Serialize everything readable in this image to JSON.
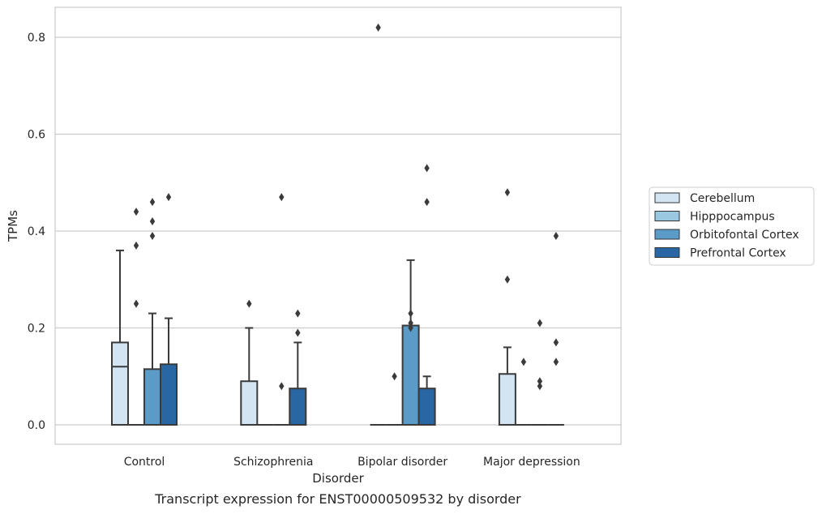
{
  "caption": "Transcript expression for ENST00000509532 by disorder",
  "chart_data": {
    "type": "box",
    "xlabel": "Disorder",
    "ylabel": "TPMs",
    "ylim": [
      -0.04,
      0.86
    ],
    "yticks": [
      0.0,
      0.2,
      0.4,
      0.6,
      0.8
    ],
    "ytick_labels": [
      "0.0",
      "0.2",
      "0.4",
      "0.6",
      "0.8"
    ],
    "grid": "horizontal",
    "legend_placement": "right",
    "categories": [
      "Control",
      "Schizophrenia",
      "Bipolar disorder",
      "Major depression"
    ],
    "series": [
      {
        "name": "Cerebellum",
        "color": "#d3e4f3",
        "boxes": [
          {
            "q1": 0.0,
            "median": 0.12,
            "q3": 0.17,
            "whisker_low": 0.0,
            "whisker_high": 0.36,
            "outliers": []
          },
          {
            "q1": 0.0,
            "median": 0.0,
            "q3": 0.09,
            "whisker_low": 0.0,
            "whisker_high": 0.2,
            "outliers": [
              0.25
            ]
          },
          {
            "q1": 0.0,
            "median": 0.0,
            "q3": 0.0,
            "whisker_low": 0.0,
            "whisker_high": 0.0,
            "outliers": [
              0.82
            ]
          },
          {
            "q1": 0.0,
            "median": 0.0,
            "q3": 0.105,
            "whisker_low": 0.0,
            "whisker_high": 0.16,
            "outliers": [
              0.3,
              0.48
            ]
          }
        ]
      },
      {
        "name": "Hipppocampus",
        "color": "#9ac8e0",
        "boxes": [
          {
            "q1": 0.0,
            "median": 0.0,
            "q3": 0.0,
            "whisker_low": 0.0,
            "whisker_high": 0.0,
            "outliers": [
              0.25,
              0.37,
              0.44
            ]
          },
          {
            "q1": 0.0,
            "median": 0.0,
            "q3": 0.0,
            "whisker_low": 0.0,
            "whisker_high": 0.0,
            "outliers": []
          },
          {
            "q1": 0.0,
            "median": 0.0,
            "q3": 0.0,
            "whisker_low": 0.0,
            "whisker_high": 0.0,
            "outliers": [
              0.1
            ]
          },
          {
            "q1": 0.0,
            "median": 0.0,
            "q3": 0.0,
            "whisker_low": 0.0,
            "whisker_high": 0.0,
            "outliers": [
              0.13
            ]
          }
        ]
      },
      {
        "name": "Orbitofontal Cortex",
        "color": "#5a9bc8",
        "boxes": [
          {
            "q1": 0.0,
            "median": 0.0,
            "q3": 0.115,
            "whisker_low": 0.0,
            "whisker_high": 0.23,
            "outliers": [
              0.39,
              0.42,
              0.46
            ]
          },
          {
            "q1": 0.0,
            "median": 0.0,
            "q3": 0.0,
            "whisker_low": 0.0,
            "whisker_high": 0.0,
            "outliers": [
              0.08,
              0.47
            ]
          },
          {
            "q1": 0.0,
            "median": 0.0,
            "q3": 0.205,
            "whisker_low": 0.0,
            "whisker_high": 0.34,
            "outliers": [
              0.2,
              0.21,
              0.23
            ]
          },
          {
            "q1": 0.0,
            "median": 0.0,
            "q3": 0.0,
            "whisker_low": 0.0,
            "whisker_high": 0.0,
            "outliers": [
              0.08,
              0.09,
              0.21
            ]
          }
        ]
      },
      {
        "name": "Prefrontal Cortex",
        "color": "#2866a4",
        "boxes": [
          {
            "q1": 0.0,
            "median": 0.0,
            "q3": 0.125,
            "whisker_low": 0.0,
            "whisker_high": 0.22,
            "outliers": [
              0.47
            ]
          },
          {
            "q1": 0.0,
            "median": 0.0,
            "q3": 0.075,
            "whisker_low": 0.0,
            "whisker_high": 0.17,
            "outliers": [
              0.19,
              0.23
            ]
          },
          {
            "q1": 0.0,
            "median": 0.0,
            "q3": 0.075,
            "whisker_low": 0.0,
            "whisker_high": 0.1,
            "outliers": [
              0.46,
              0.53
            ]
          },
          {
            "q1": 0.0,
            "median": 0.0,
            "q3": 0.0,
            "whisker_low": 0.0,
            "whisker_high": 0.0,
            "outliers": [
              0.13,
              0.17,
              0.39
            ]
          }
        ]
      }
    ]
  }
}
